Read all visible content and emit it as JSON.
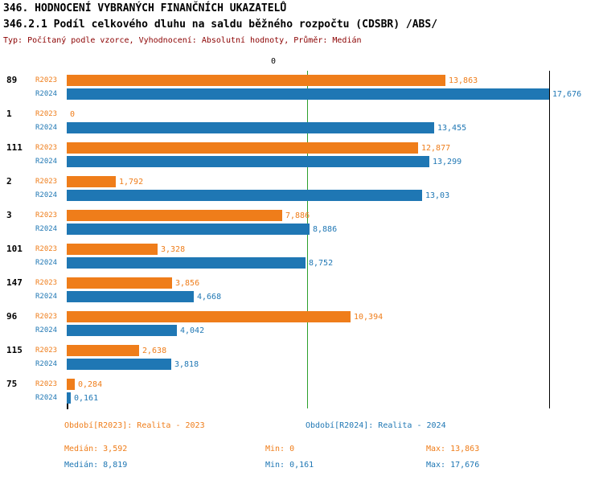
{
  "header": {
    "title": "346. HODNOCENÍ VYBRANÝCH FINANČNÍCH UKAZATELŮ",
    "subtitle": "346.2.1 Podíl celkového dluhu na saldu běžného rozpočtu (CDSBR) /ABS/",
    "meta": "Typ: Počítaný podle vzorce, Vyhodnocení: Absolutní hodnoty, Průměr: Medián"
  },
  "colors": {
    "r2023": "#ef7d1a",
    "r2024": "#1f77b4",
    "median_line": "#2ca02c",
    "meta_text": "#8b0000",
    "axis": "#000000"
  },
  "chart_data": {
    "type": "bar",
    "orientation": "horizontal",
    "title": "346.2.1 Podíl celkového dluhu na saldu běžného rozpočtu (CDSBR) /ABS/",
    "categories": [
      "89",
      "1",
      "111",
      "2",
      "3",
      "101",
      "147",
      "96",
      "115",
      "75"
    ],
    "series": [
      {
        "name": "R2023",
        "color": "#ef7d1a",
        "values": [
          13.863,
          0,
          12.877,
          1.792,
          7.886,
          3.328,
          3.856,
          10.394,
          2.638,
          0.284
        ],
        "value_labels": [
          "13,863",
          "0",
          "12,877",
          "1,792",
          "7,886",
          "3,328",
          "3,856",
          "10,394",
          "2,638",
          "0,284"
        ]
      },
      {
        "name": "R2024",
        "color": "#1f77b4",
        "values": [
          17.676,
          13.455,
          13.299,
          13.03,
          8.886,
          8.752,
          4.668,
          4.042,
          3.818,
          0.161
        ],
        "value_labels": [
          "17,676",
          "13,455",
          "13,299",
          "13,03",
          "8,886",
          "8,752",
          "4,668",
          "4,042",
          "3,818",
          "0,161"
        ]
      }
    ],
    "xlim": [
      0,
      17.676
    ],
    "top_tick_label": "0",
    "reference_line": {
      "value": 8.819,
      "color": "#2ca02c"
    },
    "legend_position": "bottom",
    "grid": false
  },
  "legend": {
    "r2023": "Období[R2023]: Realita - 2023",
    "r2024": "Období[R2024]: Realita - 2024"
  },
  "stats": {
    "r2023": {
      "median": "Medián: 3,592",
      "min": "Min: 0",
      "max": "Max: 13,863"
    },
    "r2024": {
      "median": "Medián: 8,819",
      "min": "Min: 0,161",
      "max": "Max: 17,676"
    }
  }
}
